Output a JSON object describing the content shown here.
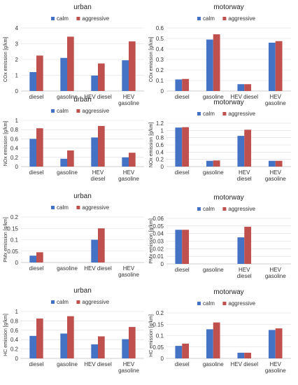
{
  "colors": {
    "calm": "#4472C4",
    "aggressive": "#C0504D"
  },
  "chart_data": [
    {
      "type": "bar",
      "title": "urban",
      "ylabel": "COx emission [g/km]",
      "categories": [
        "diesel",
        "gasoline",
        "HEV diesel",
        "HEV\ngasoline"
      ],
      "ylim": [
        0,
        4
      ],
      "yticks": [
        0,
        1,
        2,
        3,
        4
      ],
      "legend": "top",
      "series": [
        {
          "name": "calm",
          "values": [
            1.2,
            2.1,
            0.98,
            1.95
          ]
        },
        {
          "name": "aggressive",
          "values": [
            2.25,
            3.45,
            1.75,
            3.15
          ]
        }
      ]
    },
    {
      "type": "bar",
      "title": "motorway",
      "ylabel": "COx emission [g/km]",
      "categories": [
        "diesel",
        "gasoline",
        "HEV diesel",
        "HEV\ngasoline"
      ],
      "ylim": [
        0,
        0.6
      ],
      "yticks": [
        0,
        0.1,
        0.2,
        0.3,
        0.4,
        0.5,
        0.6
      ],
      "legend": "top",
      "series": [
        {
          "name": "calm",
          "values": [
            0.11,
            0.49,
            0.065,
            0.46
          ]
        },
        {
          "name": "aggressive",
          "values": [
            0.115,
            0.54,
            0.065,
            0.475
          ]
        }
      ]
    },
    {
      "type": "bar",
      "title": "urban",
      "ylabel": "NOx emission [g/km]",
      "categories": [
        "diesel",
        "gasoline",
        "HEV\ndiesel",
        "HEV\ngasoline"
      ],
      "ylim": [
        0,
        1
      ],
      "yticks": [
        0,
        0.2,
        0.4,
        0.6,
        0.8,
        1
      ],
      "legend": "top",
      "series": [
        {
          "name": "calm",
          "values": [
            0.6,
            0.17,
            0.63,
            0.2
          ]
        },
        {
          "name": "aggressive",
          "values": [
            0.83,
            0.35,
            0.88,
            0.3
          ]
        }
      ]
    },
    {
      "type": "bar",
      "title": "motorway",
      "ylabel": "NOx emission [g/km]",
      "categories": [
        "diesel",
        "gasoline",
        "HEV\ndiesel",
        "HEV\ngasoline"
      ],
      "ylim": [
        0,
        1.2
      ],
      "yticks": [
        0,
        0.2,
        0.4,
        0.6,
        0.8,
        1,
        1.2
      ],
      "legend": "top",
      "series": [
        {
          "name": "calm",
          "values": [
            1.08,
            0.16,
            0.85,
            0.16
          ]
        },
        {
          "name": "aggressive",
          "values": [
            1.09,
            0.17,
            1.02,
            0.16
          ]
        }
      ]
    },
    {
      "type": "bar",
      "title": "urban",
      "ylabel": "PMx emission [g/km]",
      "categories": [
        "diesel",
        "gasoline",
        "HEV diesel",
        "HEV\ngasoline"
      ],
      "ylim": [
        0,
        0.2
      ],
      "yticks": [
        0,
        0.05,
        0.1,
        0.15,
        0.2
      ],
      "legend": "top",
      "series": [
        {
          "name": "calm",
          "values": [
            0.03,
            0,
            0.1,
            0
          ]
        },
        {
          "name": "aggressive",
          "values": [
            0.045,
            0,
            0.15,
            0
          ]
        }
      ]
    },
    {
      "type": "bar",
      "title": "motorway",
      "ylabel": "PMx emission [g/km]",
      "categories": [
        "diesel",
        "gasoline",
        "HEV\ndiesel",
        "HEV\ngasoline"
      ],
      "ylim": [
        0,
        0.06
      ],
      "yticks": [
        0,
        0.01,
        0.02,
        0.03,
        0.04,
        0.05,
        0.06
      ],
      "legend": "top",
      "series": [
        {
          "name": "calm",
          "values": [
            0.045,
            0,
            0.035,
            0
          ]
        },
        {
          "name": "aggressive",
          "values": [
            0.045,
            0,
            0.049,
            0
          ]
        }
      ]
    },
    {
      "type": "bar",
      "title": "urban",
      "ylabel": "HC emission [g/km]",
      "categories": [
        "diesel",
        "gasoline",
        "HEV diesel",
        "HEV\ngasoline"
      ],
      "ylim": [
        0,
        1
      ],
      "yticks": [
        0,
        0.2,
        0.4,
        0.6,
        0.8,
        1
      ],
      "legend": "top",
      "series": [
        {
          "name": "calm",
          "values": [
            0.48,
            0.53,
            0.3,
            0.41
          ]
        },
        {
          "name": "aggressive",
          "values": [
            0.85,
            0.9,
            0.47,
            0.67
          ]
        }
      ]
    },
    {
      "type": "bar",
      "title": "motorway",
      "ylabel": "HC emission [g/km]",
      "categories": [
        "diesel",
        "gasoline",
        "HEV diesel",
        "HEV\ngasoline"
      ],
      "ylim": [
        0,
        0.2
      ],
      "yticks": [
        0,
        0.05,
        0.1,
        0.15,
        0.2
      ],
      "legend": "top",
      "series": [
        {
          "name": "calm",
          "values": [
            0.055,
            0.128,
            0.025,
            0.125
          ]
        },
        {
          "name": "aggressive",
          "values": [
            0.065,
            0.158,
            0.025,
            0.132
          ]
        }
      ]
    }
  ]
}
